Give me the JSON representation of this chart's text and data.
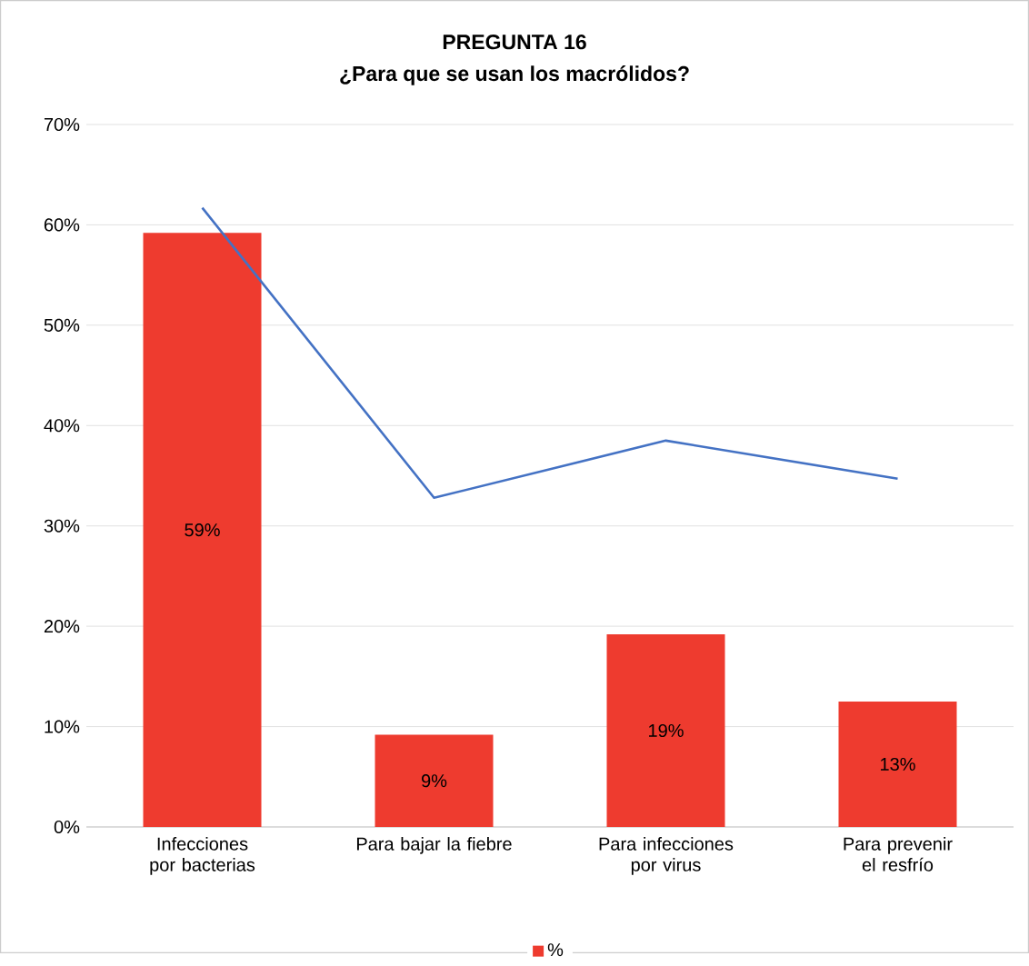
{
  "chart_data": {
    "type": "bar",
    "title": "PREGUNTA 16",
    "subtitle": "¿Para que se usan los macrólidos?",
    "categories": [
      "Infecciones por bacterias",
      "Para bajar la fiebre",
      "Para infecciones por virus",
      "Para prevenir el resfrío"
    ],
    "series": [
      {
        "name": "%",
        "color": "#ee3b2f",
        "values": [
          59.2,
          9.2,
          19.2,
          12.5
        ],
        "value_labels": [
          "59%",
          "9%",
          "19%",
          "13%"
        ]
      },
      {
        "type": "line",
        "color": "#4472c4",
        "values": [
          61.7,
          32.8,
          38.5,
          34.7
        ]
      }
    ],
    "ylim": [
      0,
      70
    ],
    "yticks": [
      {
        "value": 0,
        "label": "0%"
      },
      {
        "value": 10,
        "label": "10%"
      },
      {
        "value": 20,
        "label": "20%"
      },
      {
        "value": 30,
        "label": "30%"
      },
      {
        "value": 40,
        "label": "40%"
      },
      {
        "value": 50,
        "label": "50%"
      },
      {
        "value": 60,
        "label": "60%"
      },
      {
        "value": 70,
        "label": "70%"
      }
    ],
    "grid": "y",
    "legend": "bottom"
  }
}
